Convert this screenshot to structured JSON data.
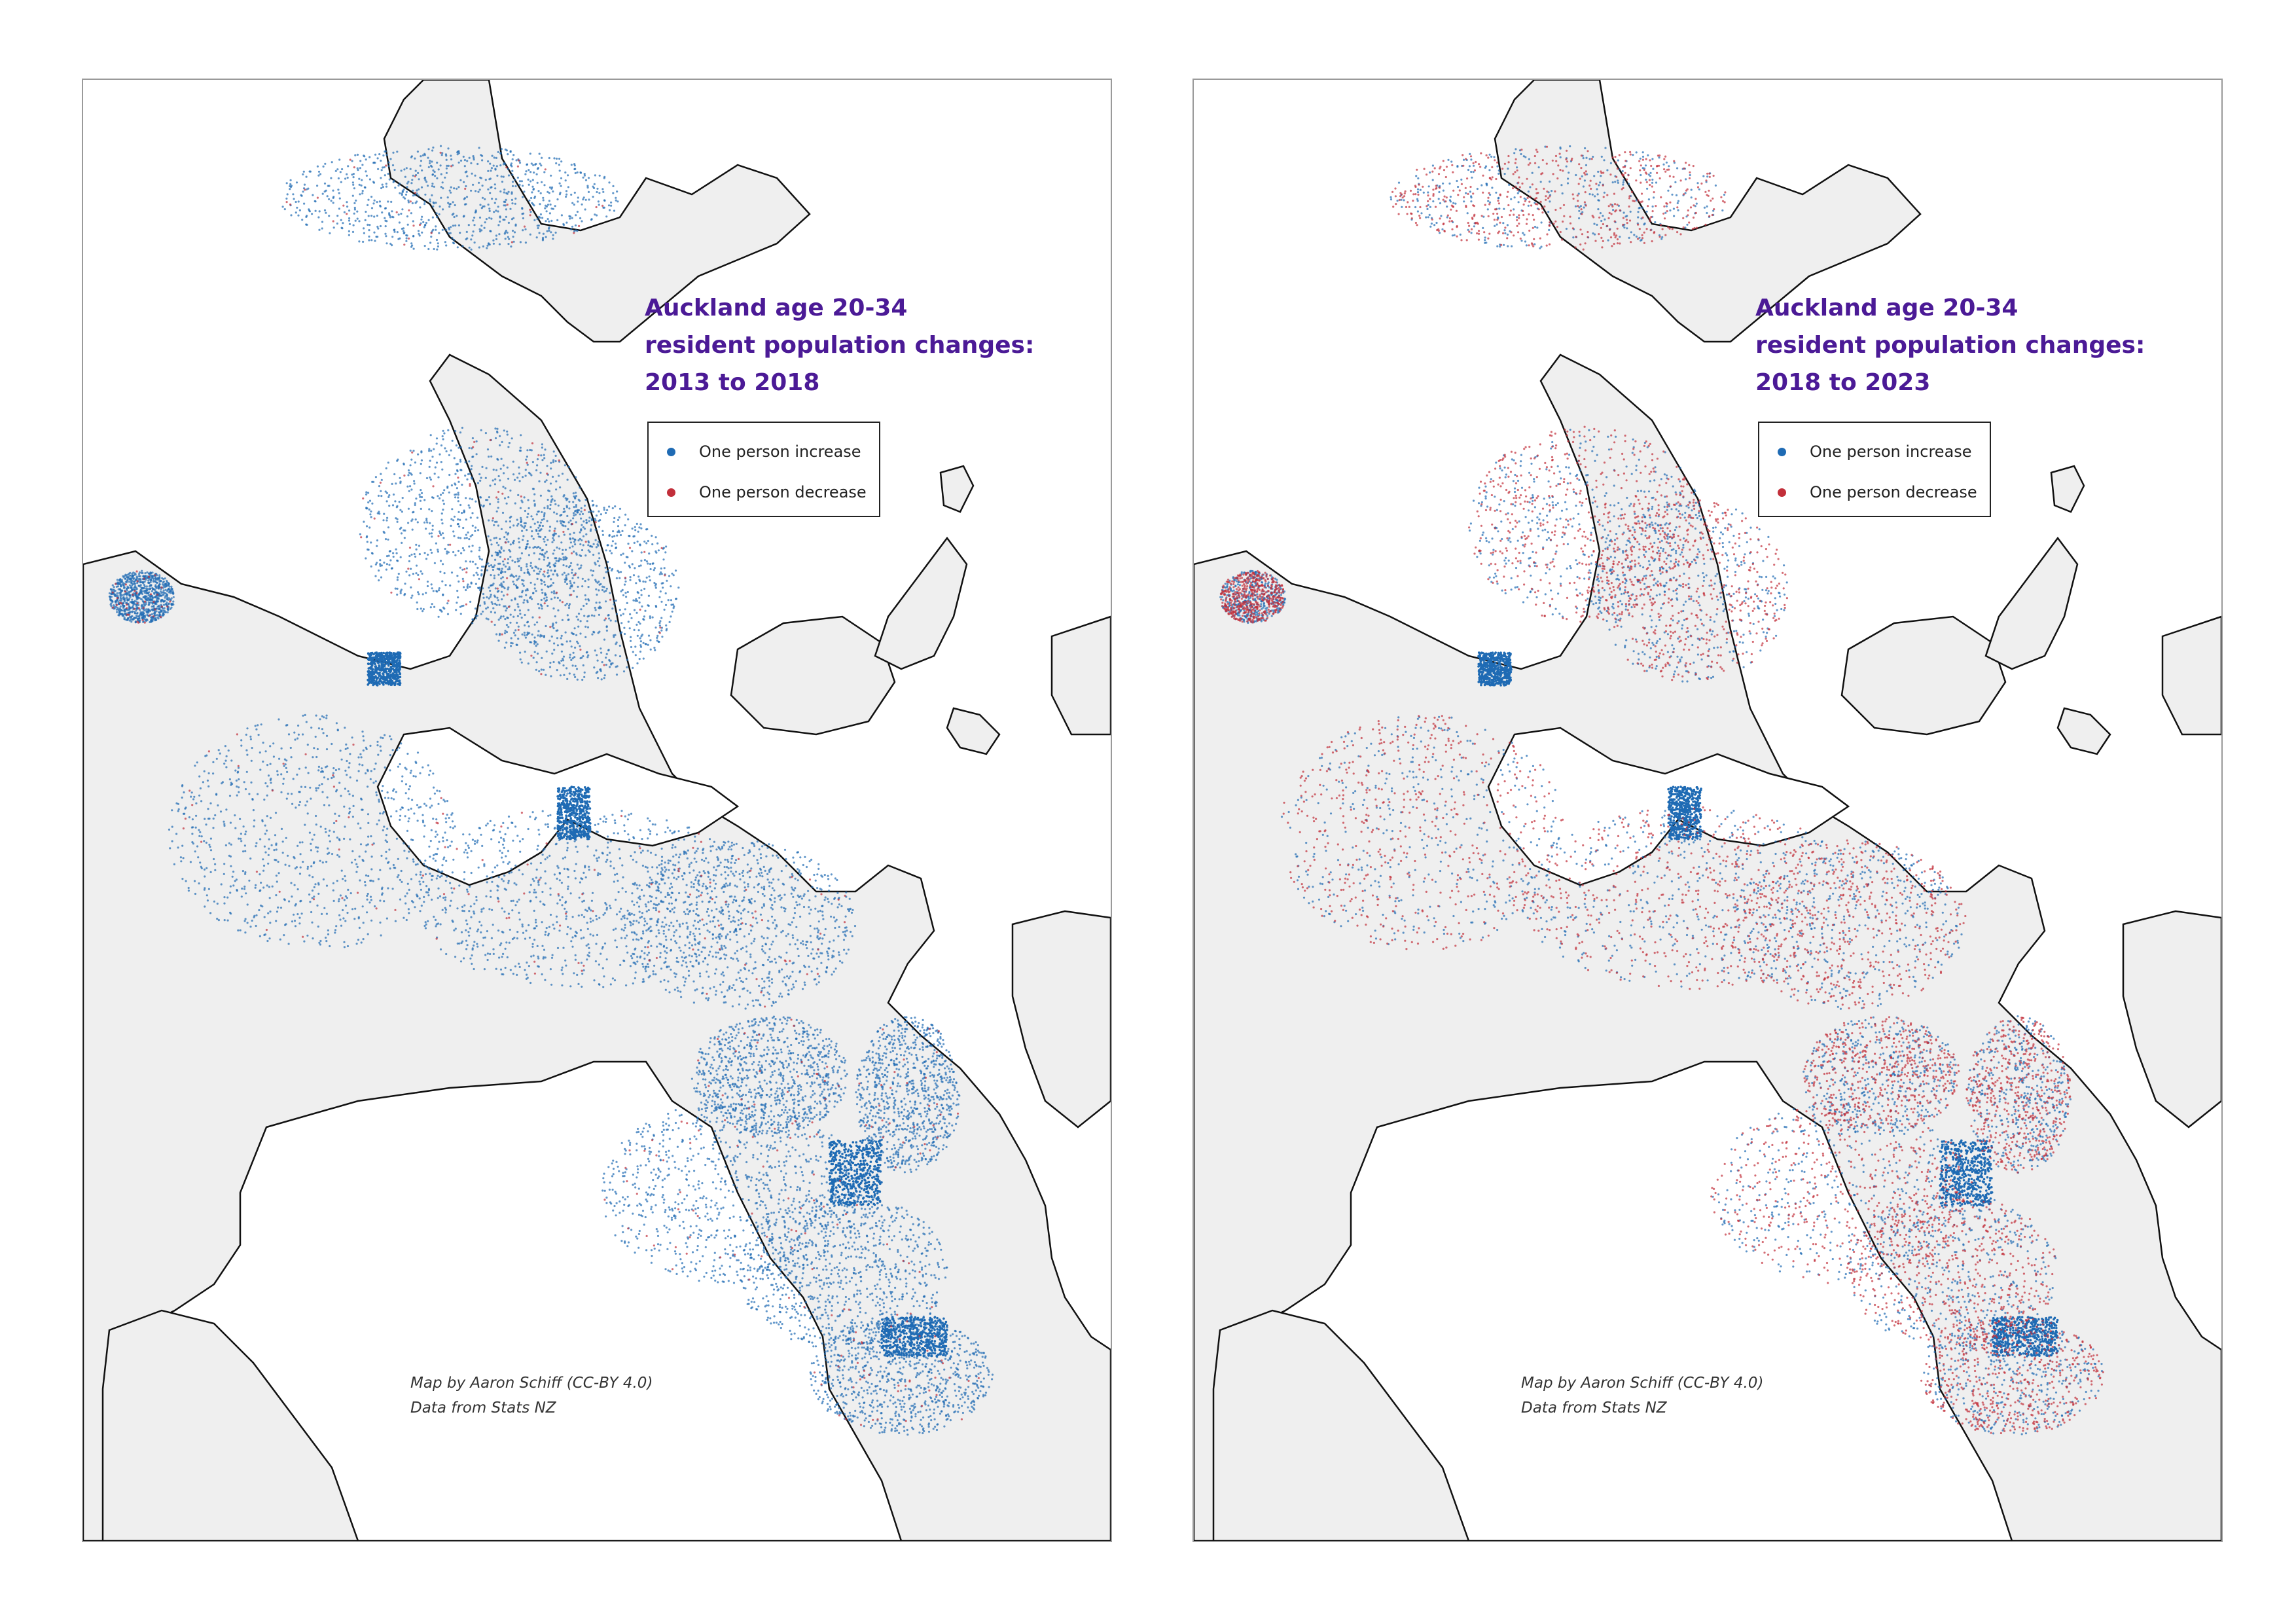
{
  "colors": {
    "increase": "#1f6bb4",
    "decrease": "#c22f3a",
    "land": "#efefef",
    "sea": "#ffffff",
    "coast": "#111111",
    "title": "#4b1a96"
  },
  "legend": {
    "increase_label": "One person increase",
    "decrease_label": "One person decrease"
  },
  "credit": {
    "line1": "Map by Aaron Schiff (CC-BY 4.0)",
    "line2": "Data from Stats NZ"
  },
  "maps": [
    {
      "title_line1": "Auckland age 20-34",
      "title_line2": "resident population changes:",
      "title_line3": "2013 to 2018",
      "dominant_change": "increase"
    },
    {
      "title_line1": "Auckland age 20-34",
      "title_line2": "resident population changes:",
      "title_line3": "2018 to 2023",
      "dominant_change": "mixed"
    }
  ]
}
